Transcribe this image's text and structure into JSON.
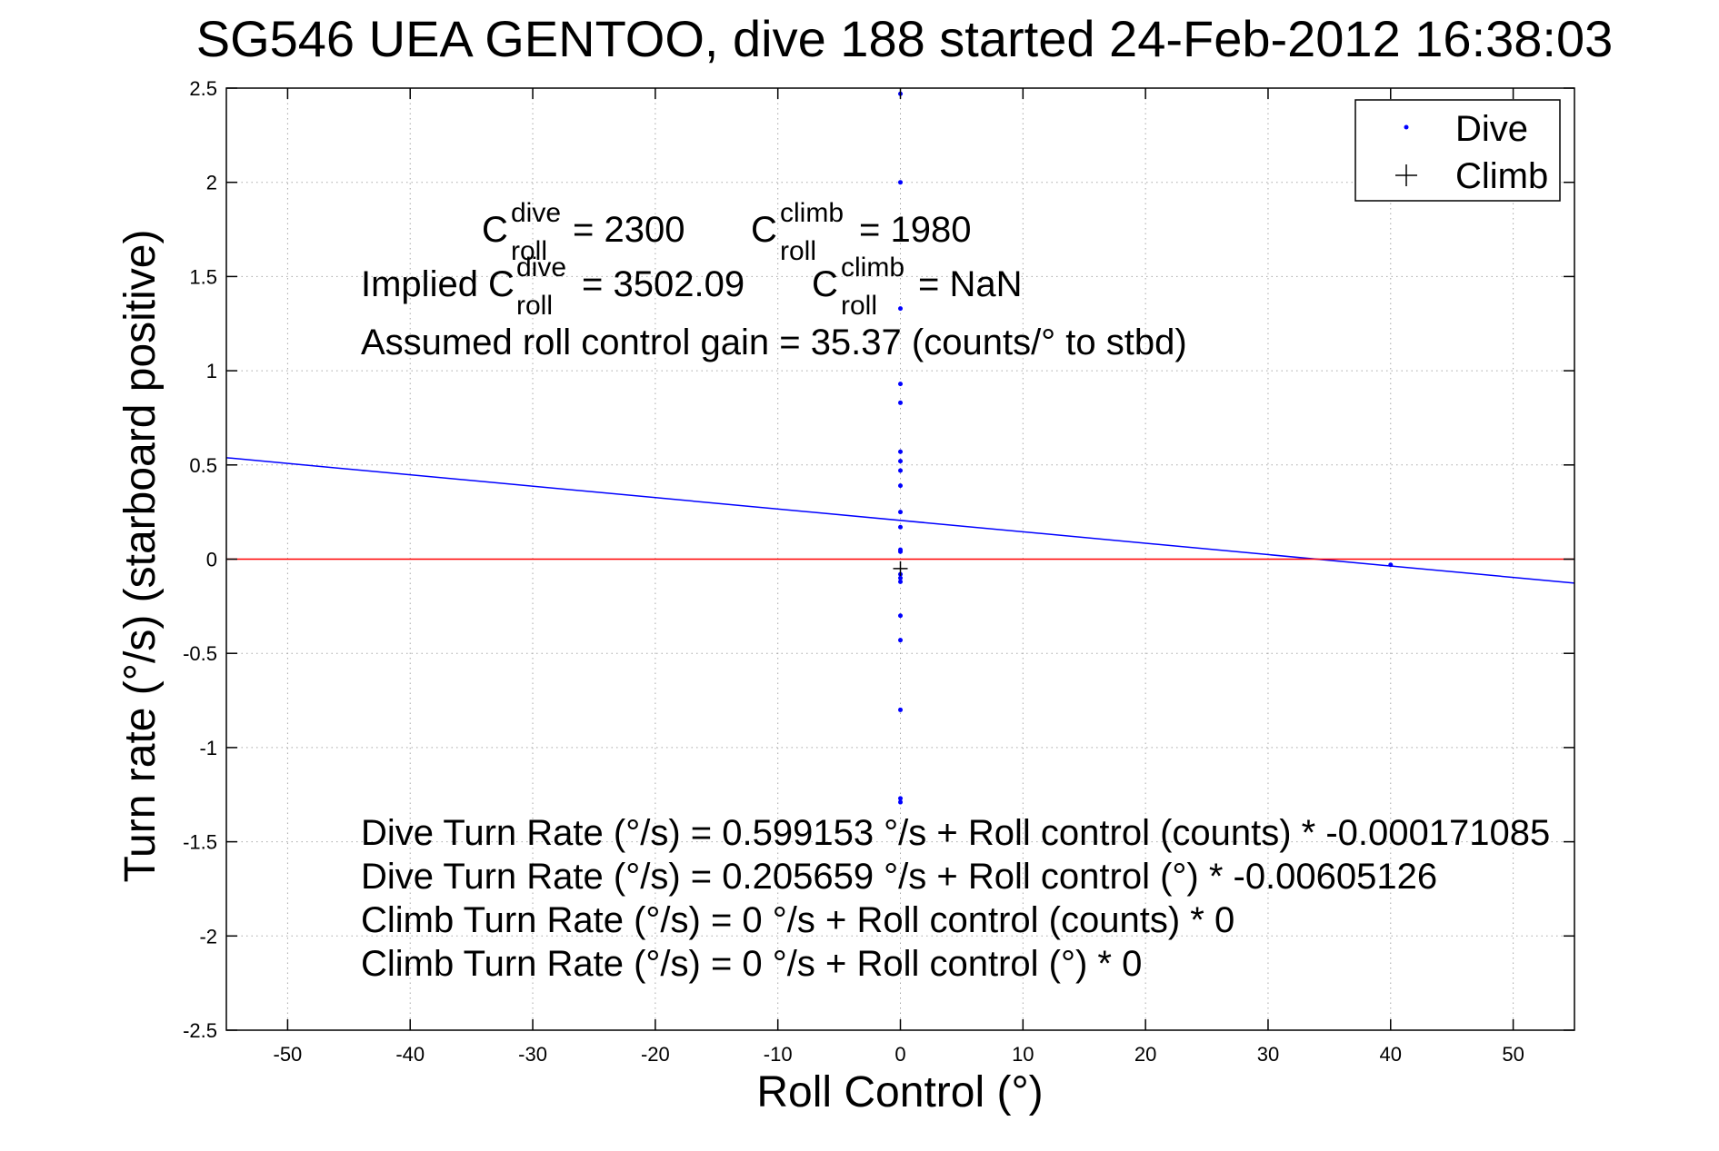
{
  "chart_data": {
    "type": "scatter",
    "title": "SG546 UEA GENTOO, dive 188 started 24-Feb-2012 16:38:03",
    "xlabel": "Roll Control (°)",
    "ylabel": "Turn rate (°/s) (starboard positive)",
    "xlim": [
      -55,
      55
    ],
    "ylim": [
      -2.5,
      2.5
    ],
    "xticks": [
      -50,
      -40,
      -30,
      -20,
      -10,
      0,
      10,
      20,
      30,
      40,
      50
    ],
    "yticks": [
      -2.5,
      -2,
      -1.5,
      -1,
      -0.5,
      0,
      0.5,
      1,
      1.5,
      2,
      2.5
    ],
    "xtick_labels": [
      "-50",
      "-40",
      "-30",
      "-20",
      "-10",
      "0",
      "10",
      "20",
      "30",
      "40",
      "50"
    ],
    "ytick_labels": [
      "-2.5",
      "-2",
      "-1.5",
      "-1",
      "-0.5",
      "0",
      "0.5",
      "1",
      "1.5",
      "2",
      "2.5"
    ],
    "grid": true,
    "legend_position": "top-right",
    "legend": [
      {
        "label": "Dive",
        "marker": "dot",
        "color": "#0000ff"
      },
      {
        "label": "Climb",
        "marker": "plus",
        "color": "#000000"
      }
    ],
    "series": [
      {
        "name": "Dive",
        "color": "#0000ff",
        "marker": "dot",
        "points": [
          [
            0,
            2.47
          ],
          [
            0,
            2.0
          ],
          [
            0,
            1.33
          ],
          [
            0,
            0.93
          ],
          [
            0,
            0.83
          ],
          [
            0,
            0.57
          ],
          [
            0,
            0.52
          ],
          [
            0,
            0.47
          ],
          [
            0,
            0.39
          ],
          [
            0,
            0.25
          ],
          [
            0,
            0.17
          ],
          [
            0,
            0.05
          ],
          [
            0,
            0.04
          ],
          [
            0,
            -0.08
          ],
          [
            0,
            -0.1
          ],
          [
            0,
            -0.12
          ],
          [
            0,
            -0.3
          ],
          [
            0,
            -0.43
          ],
          [
            0,
            -0.8
          ],
          [
            0,
            -1.27
          ],
          [
            0,
            -1.29
          ],
          [
            40,
            -0.03
          ]
        ]
      },
      {
        "name": "Climb",
        "color": "#000000",
        "marker": "plus",
        "points": [
          [
            0,
            -0.05
          ]
        ]
      }
    ],
    "lines": [
      {
        "name": "Dive fit",
        "color": "#0000ff",
        "x": [
          -55,
          55
        ],
        "y": [
          0.538478,
          -0.12716
        ]
      },
      {
        "name": "Zero",
        "color": "#ff0000",
        "x": [
          -55,
          55
        ],
        "y": [
          0,
          0
        ]
      }
    ],
    "annotations": {
      "c_roll_dive": "= 2300",
      "c_roll_climb": "= 1980",
      "implied_prefix": "Implied C",
      "implied_dive": "= 3502.09",
      "implied_climb": "= NaN",
      "c_letter": "C",
      "sup_dive": "dive",
      "sup_climb": "climb",
      "sub_roll": "roll",
      "gain": "Assumed roll control gain = 35.37 (counts/° to stbd)",
      "eq1": "Dive Turn Rate (°/s) = 0.599153 °/s + Roll control (counts) * -0.000171085",
      "eq2": "Dive Turn Rate (°/s) = 0.205659 °/s + Roll control (°) * -0.00605126",
      "eq3": "Climb Turn Rate (°/s) = 0 °/s + Roll control (counts) * 0",
      "eq4": "Climb Turn Rate (°/s) = 0 °/s + Roll control (°) * 0"
    }
  }
}
